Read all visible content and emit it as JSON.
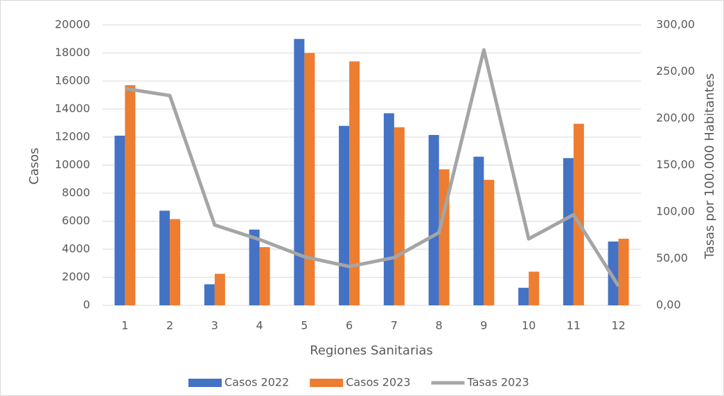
{
  "chart_data": {
    "type": "bar",
    "x_label": "Regiones Sanitarias",
    "y_label": "Casos",
    "y2_label": "Tasas por 100.000 Habitantes",
    "categories": [
      "1",
      "2",
      "3",
      "4",
      "5",
      "6",
      "7",
      "8",
      "9",
      "10",
      "11",
      "12"
    ],
    "series": [
      {
        "name": "Casos 2022",
        "color": "#4472c4",
        "values": [
          12100,
          6750,
          1500,
          5400,
          19000,
          12800,
          13700,
          12150,
          10600,
          1250,
          10500,
          4550
        ]
      },
      {
        "name": "Casos 2023",
        "color": "#ed7d31",
        "values": [
          15700,
          6150,
          2250,
          4150,
          18000,
          17400,
          12700,
          9700,
          8950,
          2400,
          12950,
          4750
        ]
      },
      {
        "name": "Tasas 2023",
        "color": "#a5a5a5",
        "type": "line",
        "axis": "y2",
        "values": [
          231.9,
          224.4,
          85.9,
          70.4,
          51.9,
          41.5,
          51.1,
          77.8,
          273.3,
          71.1,
          97,
          20.7
        ]
      }
    ],
    "ylim": [
      0,
      20000
    ],
    "yticks": [
      0,
      2000,
      4000,
      6000,
      8000,
      10000,
      12000,
      14000,
      16000,
      18000,
      20000
    ],
    "y2lim": [
      0,
      300
    ],
    "y2ticks": [
      {
        "value": 0,
        "label": "0,00"
      },
      {
        "value": 50,
        "label": "50,00"
      },
      {
        "value": 100,
        "label": "100,00"
      },
      {
        "value": 150,
        "label": "150,00"
      },
      {
        "value": 200,
        "label": "200,00"
      },
      {
        "value": 250,
        "label": "250,00"
      },
      {
        "value": 300,
        "label": "300,00"
      }
    ],
    "grid": true,
    "legend": "bottom"
  }
}
